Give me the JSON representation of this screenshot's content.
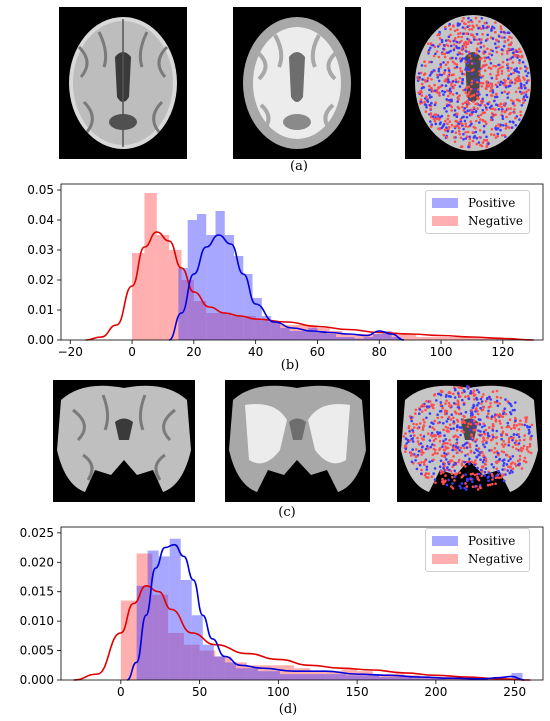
{
  "captions": {
    "a": "(a)",
    "b": "(b)",
    "c": "(c)",
    "d": "(d)"
  },
  "colors": {
    "positive": "#3b3bff",
    "negative": "#ff4d4d"
  },
  "images": {
    "a": [
      "axial-mri-scan",
      "axial-tissue-segmentation",
      "axial-sampled-points-overlay"
    ],
    "c": [
      "coronal-mri-scan",
      "coronal-tissue-segmentation",
      "coronal-sampled-points-overlay"
    ]
  },
  "chart_data": [
    {
      "type": "histogram-kde",
      "panel": "b",
      "xlim": [
        -23,
        133
      ],
      "ylim": [
        0,
        0.052
      ],
      "xticks": [
        -20,
        0,
        20,
        40,
        60,
        80,
        100,
        120
      ],
      "yticks": [
        0.0,
        0.01,
        0.02,
        0.03,
        0.04,
        0.05
      ],
      "ytick_labels": [
        "0.00",
        "0.01",
        "0.02",
        "0.03",
        "0.04",
        "0.05"
      ],
      "legend": [
        "Positive",
        "Negative"
      ],
      "legend_position": "top-right",
      "series": [
        {
          "name": "Positive",
          "bin_edges": [
            15,
            18,
            21,
            24,
            27,
            30,
            33,
            36,
            39,
            42,
            45,
            48,
            51,
            54,
            57,
            60,
            63,
            66,
            69,
            72,
            75,
            78,
            81,
            84,
            87
          ],
          "hist": [
            0.024,
            0.04,
            0.042,
            0.035,
            0.043,
            0.035,
            0.028,
            0.022,
            0.014,
            0.008,
            0.006,
            0.004,
            0.003,
            0.003,
            0.004,
            0.003,
            0.002,
            0.001,
            0.001,
            0.0005,
            0.001,
            0.002,
            0.003,
            0.001
          ],
          "kde_x": [
            12,
            16,
            20,
            24,
            28,
            32,
            36,
            40,
            46,
            52,
            58,
            64,
            70,
            76,
            80,
            84,
            88
          ],
          "kde_y": [
            0.0,
            0.009,
            0.022,
            0.031,
            0.035,
            0.032,
            0.022,
            0.012,
            0.006,
            0.004,
            0.003,
            0.0025,
            0.002,
            0.0015,
            0.003,
            0.002,
            0.0
          ]
        },
        {
          "name": "Negative",
          "bin_edges": [
            0,
            4,
            8,
            12,
            16,
            20,
            24,
            28,
            32,
            36,
            40,
            44,
            48,
            52,
            56,
            60,
            64,
            68,
            72,
            76,
            80,
            84,
            88,
            92,
            96,
            100,
            104,
            108,
            112,
            116,
            120,
            124
          ],
          "hist": [
            0.029,
            0.049,
            0.035,
            0.03,
            0.02,
            0.013,
            0.009,
            0.009,
            0.008,
            0.008,
            0.007,
            0.006,
            0.005,
            0.005,
            0.005,
            0.004,
            0.003,
            0.002,
            0.002,
            0.002,
            0.002,
            0.002,
            0.002,
            0.001,
            0.001,
            0.001,
            0.001,
            0.001,
            0.001,
            0.001,
            0.0005
          ],
          "kde_x": [
            -15,
            -10,
            -5,
            0,
            4,
            8,
            12,
            16,
            20,
            25,
            30,
            35,
            40,
            50,
            60,
            70,
            80,
            90,
            100,
            110,
            120,
            130
          ],
          "kde_y": [
            0.0,
            0.001,
            0.005,
            0.018,
            0.031,
            0.036,
            0.033,
            0.024,
            0.016,
            0.011,
            0.009,
            0.008,
            0.007,
            0.006,
            0.0045,
            0.0035,
            0.0025,
            0.002,
            0.0015,
            0.001,
            0.0005,
            0.0
          ]
        }
      ]
    },
    {
      "type": "histogram-kde",
      "panel": "d",
      "xlim": [
        -38,
        268
      ],
      "ylim": [
        0,
        0.026
      ],
      "xticks": [
        0,
        50,
        100,
        150,
        200,
        250
      ],
      "yticks": [
        0.0,
        0.005,
        0.01,
        0.015,
        0.02,
        0.025
      ],
      "ytick_labels": [
        "0.000",
        "0.005",
        "0.010",
        "0.015",
        "0.020",
        "0.025"
      ],
      "legend": [
        "Positive",
        "Negative"
      ],
      "legend_position": "top-right",
      "series": [
        {
          "name": "Positive",
          "bin_edges": [
            10,
            17,
            24,
            31,
            38,
            45,
            52,
            59,
            66,
            73,
            80,
            87,
            94,
            101,
            108,
            115,
            122,
            129,
            136,
            143,
            150,
            157,
            164,
            171,
            178,
            185,
            192,
            199,
            206,
            213,
            220,
            227,
            234,
            241,
            248,
            255
          ],
          "hist": [
            0.016,
            0.022,
            0.021,
            0.024,
            0.017,
            0.011,
            0.006,
            0.004,
            0.003,
            0.002,
            0.002,
            0.0015,
            0.0015,
            0.001,
            0.001,
            0.001,
            0.001,
            0.001,
            0.001,
            0.0008,
            0.0008,
            0.0008,
            0.0005,
            0.0005,
            0.0005,
            0.0003,
            0.0003,
            0.0002,
            0.0001,
            0.0001,
            0.0001,
            0.0,
            0.0,
            0.0,
            0.0012
          ],
          "kde_x": [
            4,
            10,
            16,
            22,
            28,
            34,
            40,
            46,
            52,
            58,
            66,
            76,
            90,
            110,
            130,
            150,
            170,
            190,
            210,
            230,
            240,
            248,
            256
          ],
          "kde_y": [
            0.0,
            0.003,
            0.011,
            0.019,
            0.0225,
            0.023,
            0.021,
            0.017,
            0.011,
            0.007,
            0.004,
            0.0025,
            0.002,
            0.0015,
            0.0015,
            0.001,
            0.0008,
            0.0005,
            0.0003,
            0.0002,
            0.0004,
            0.0006,
            0.0
          ]
        },
        {
          "name": "Negative",
          "bin_edges": [
            0,
            10,
            20,
            30,
            40,
            50,
            60,
            70,
            80,
            90,
            100,
            110,
            120,
            130,
            140,
            150,
            160,
            170,
            180,
            190,
            200,
            210,
            220,
            230,
            240
          ],
          "hist": [
            0.0135,
            0.0215,
            0.0145,
            0.008,
            0.006,
            0.005,
            0.004,
            0.003,
            0.0025,
            0.0025,
            0.0025,
            0.002,
            0.0015,
            0.0015,
            0.0018,
            0.0015,
            0.001,
            0.001,
            0.0008,
            0.0005,
            0.0005,
            0.0003,
            0.0002,
            0.0001
          ],
          "kde_x": [
            -30,
            -15,
            0,
            8,
            16,
            24,
            32,
            45,
            60,
            80,
            100,
            120,
            140,
            160,
            180,
            200,
            220,
            240,
            260
          ],
          "kde_y": [
            0.0,
            0.001,
            0.008,
            0.013,
            0.016,
            0.015,
            0.012,
            0.008,
            0.006,
            0.0045,
            0.0035,
            0.0025,
            0.002,
            0.0017,
            0.0012,
            0.0008,
            0.0005,
            0.0002,
            0.0
          ]
        }
      ]
    }
  ]
}
